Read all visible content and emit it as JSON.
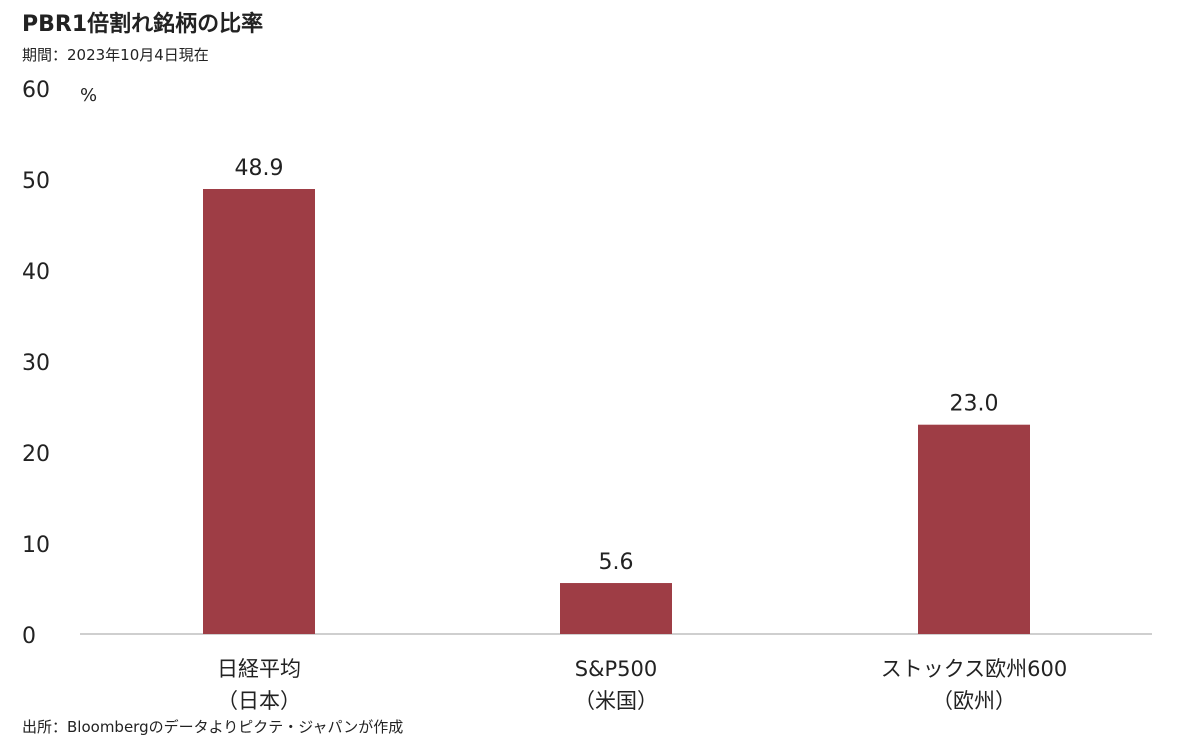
{
  "title": "PBR1倍割れ銘柄の比率",
  "subtitle": "期間：2023年10月4日現在",
  "source": "出所：Bloombergのデータよりピクテ・ジャパンが作成",
  "colors": {
    "bar": "#9E3D45",
    "axis": "#BFBFBF"
  },
  "chart_data": {
    "type": "bar",
    "title": "PBR1倍割れ銘柄の比率",
    "subtitle": "期間：2023年10月4日現在",
    "y_unit": "%",
    "ylim": [
      0,
      60
    ],
    "yticks": [
      0,
      10,
      20,
      30,
      40,
      50,
      60
    ],
    "grid": false,
    "categories": [
      {
        "line1": "日経平均",
        "line2": "（日本）"
      },
      {
        "line1": "S&P500",
        "line2": "（米国）"
      },
      {
        "line1": "ストックス欧州600",
        "line2": "（欧州）"
      }
    ],
    "values": [
      48.9,
      5.6,
      23.0
    ],
    "data_labels": [
      "48.9",
      "5.6",
      "23.0"
    ]
  }
}
